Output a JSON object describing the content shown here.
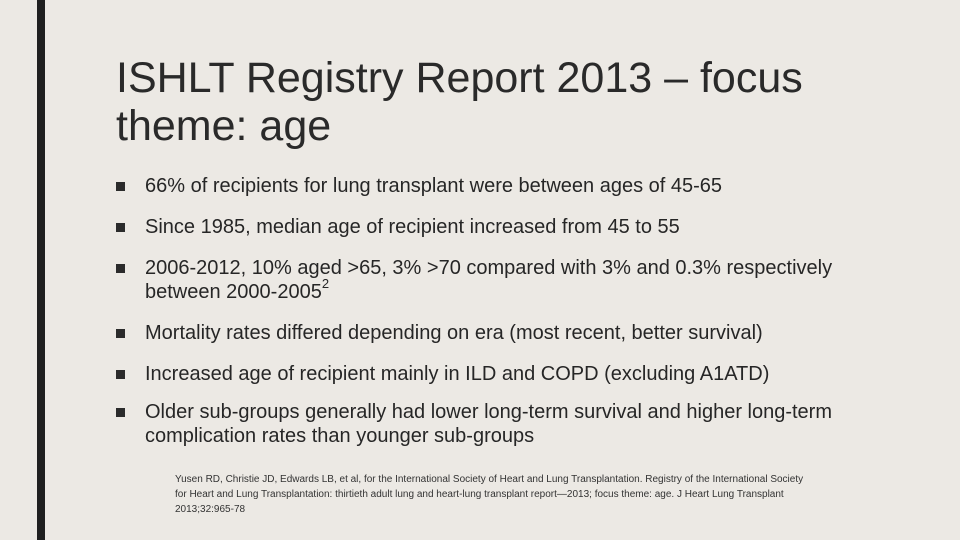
{
  "slide": {
    "title": "ISHLT Registry Report 2013 – focus theme: age",
    "bullets": [
      {
        "text": "66% of recipients for lung transplant were between ages of 45-65"
      },
      {
        "text": "Since 1985, median age of recipient increased from 45 to 55"
      },
      {
        "text": "2006-2012, 10% aged >65, 3% >70 compared with 3% and 0.3% respectively between 2000-2005",
        "sup": "2"
      },
      {
        "text": "Mortality rates differed depending on era (most recent, better survival)"
      },
      {
        "text": "Increased age of recipient mainly in ILD and COPD (excluding A1ATD)"
      },
      {
        "text": "Older sub-groups generally had lower long-term survival and higher long-term complication rates than younger sub-groups"
      }
    ],
    "footnote": "Yusen RD, Christie JD, Edwards LB, et al, for the International Society of Heart and Lung Transplantation. Registry of the International Society for Heart and Lung Transplantation: thirtieth adult lung and heart-lung transplant report—2013; focus theme: age. J Heart Lung Transplant 2013;32:965-78"
  }
}
